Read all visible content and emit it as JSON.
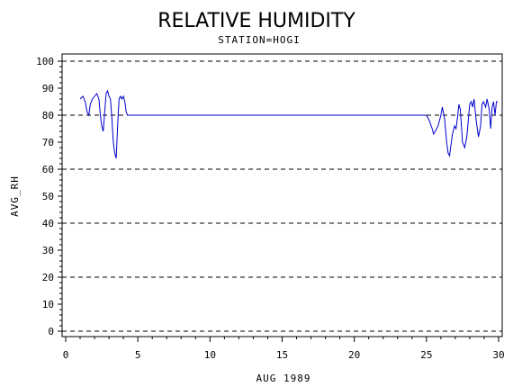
{
  "chart_data": {
    "type": "line",
    "title": "RELATIVE HUMIDITY",
    "subtitle": "STATION=HOGI",
    "xlabel": "AUG 1989",
    "ylabel": "AVG_RH",
    "xlim": [
      0,
      30
    ],
    "ylim": [
      0,
      100
    ],
    "xticks": [
      0,
      5,
      10,
      15,
      20,
      25,
      30
    ],
    "yticks": [
      0,
      10,
      20,
      30,
      40,
      50,
      60,
      70,
      80,
      90,
      100
    ],
    "reference_lines": [
      0,
      20,
      40,
      60,
      80,
      100
    ],
    "grid": false,
    "line_color": "#0000cc",
    "series": [
      {
        "x": [
          1.0,
          1.2,
          1.35,
          1.5,
          1.6,
          1.7,
          1.85,
          2.0,
          2.15,
          2.3,
          2.4,
          2.5,
          2.6,
          2.7,
          2.8,
          2.9,
          3.0,
          3.1,
          3.2,
          3.3,
          3.4,
          3.5,
          3.6,
          3.7,
          3.8,
          3.9,
          4.0,
          4.1,
          4.2,
          4.3,
          4.4,
          4.5,
          5,
          10,
          15,
          20,
          25,
          25.2,
          25.4,
          25.5,
          25.6,
          25.8,
          25.9,
          26.0,
          26.1,
          26.25,
          26.4,
          26.5,
          26.6,
          26.7,
          26.8,
          26.95,
          27.05,
          27.15,
          27.25,
          27.35,
          27.5,
          27.65,
          27.8,
          27.9,
          28.0,
          28.1,
          28.2,
          28.3,
          28.45,
          28.6,
          28.75,
          28.85,
          28.95,
          29.1,
          29.2,
          29.35,
          29.45,
          29.55,
          29.65,
          29.75,
          29.85,
          29.95
        ],
        "values": [
          86,
          87,
          85,
          81,
          80,
          84,
          86,
          87,
          88,
          86,
          80,
          76,
          74,
          81,
          88,
          89,
          87,
          86,
          79,
          70,
          66,
          64,
          76,
          86,
          87,
          86,
          87,
          85,
          81,
          80,
          80,
          80,
          80,
          80,
          80,
          80,
          80,
          78,
          75,
          73,
          74,
          76,
          78,
          80,
          83,
          79,
          70,
          66,
          65,
          69,
          73,
          76,
          75,
          79,
          84,
          82,
          70,
          68,
          72,
          78,
          84,
          85,
          83,
          86,
          78,
          72,
          76,
          84,
          85,
          83,
          86,
          82,
          75,
          83,
          85,
          80,
          85,
          85
        ]
      }
    ]
  }
}
